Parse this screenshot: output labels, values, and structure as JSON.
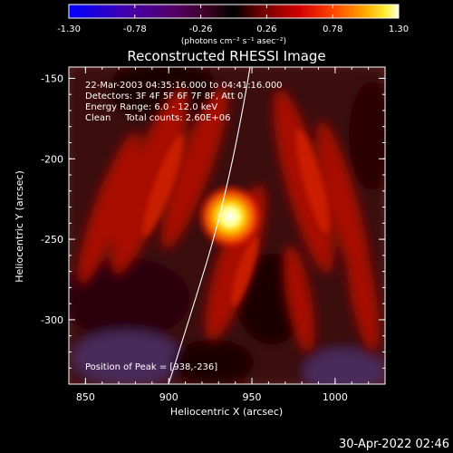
{
  "colorbar": {
    "tick_labels": [
      "-1.30",
      "-0.78",
      "-0.26",
      "0.26",
      "0.78",
      "1.30"
    ],
    "unit_label": "(photons cm⁻² s⁻¹ asec⁻²)",
    "range": [
      -1.3,
      1.3
    ]
  },
  "plot": {
    "title": "Reconstructed RHESSI Image",
    "annotations": {
      "line1": "22-Mar-2003 04:35:16.000 to 04:41:16.000",
      "line2": "Detectors: 3F 4F 5F 6F 7F 8F, Att 0",
      "line3": "Energy Range: 6.0 - 12.0 keV",
      "line4": "Clean     Total counts: 2.60E+06",
      "peak": "Position of Peak = [938,-236]"
    },
    "x_axis": {
      "label": "Heliocentric X (arcsec)",
      "ticks": [
        "850",
        "900",
        "950",
        "1000"
      ],
      "tick_values": [
        850,
        900,
        950,
        1000
      ],
      "range": [
        840,
        1030
      ]
    },
    "y_axis": {
      "label": "Heliocentric Y (arcsec)",
      "ticks": [
        "-150",
        "-200",
        "-250",
        "-300"
      ],
      "tick_values": [
        -150,
        -200,
        -250,
        -300
      ],
      "range": [
        -340,
        -143
      ]
    },
    "peak": {
      "x": 938,
      "y": -236
    }
  },
  "footer": {
    "date": "30-Apr-2022 02:46"
  },
  "colors": {
    "background": "#000000",
    "text": "#ffffff",
    "limb": "#ffffff"
  }
}
